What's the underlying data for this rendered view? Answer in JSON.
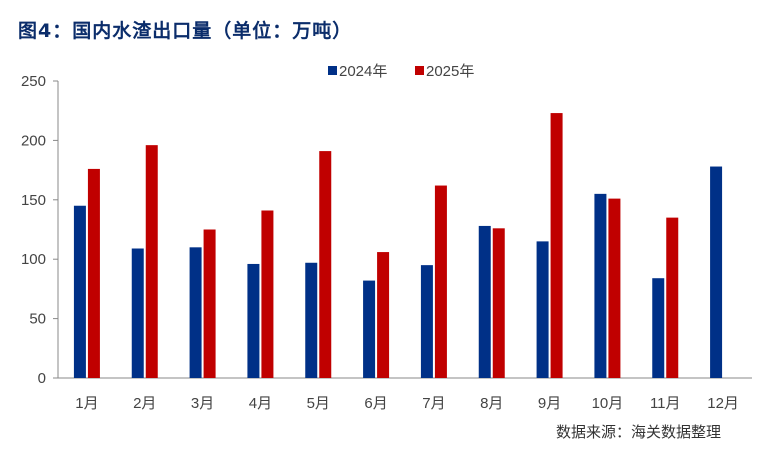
{
  "title": "图4：国内水渣出口量（单位：万吨）",
  "source": "数据来源：海关数据整理",
  "chart_data": {
    "type": "bar",
    "title": "图4：国内水渣出口量（单位：万吨）",
    "categories": [
      "1月",
      "2月",
      "3月",
      "4月",
      "5月",
      "6月",
      "7月",
      "8月",
      "9月",
      "10月",
      "11月",
      "12月"
    ],
    "series": [
      {
        "name": "2024年",
        "color": "#003087",
        "values": [
          145,
          109,
          110,
          96,
          97,
          82,
          95,
          128,
          115,
          155,
          84,
          178
        ]
      },
      {
        "name": "2025年",
        "color": "#C00000",
        "values": [
          176,
          196,
          125,
          141,
          191,
          106,
          162,
          126,
          223,
          151,
          135,
          null
        ]
      }
    ],
    "ylim": [
      0,
      250
    ],
    "yticks": [
      0,
      50,
      100,
      150,
      200,
      250
    ],
    "grid": false,
    "legend": "top-center"
  }
}
